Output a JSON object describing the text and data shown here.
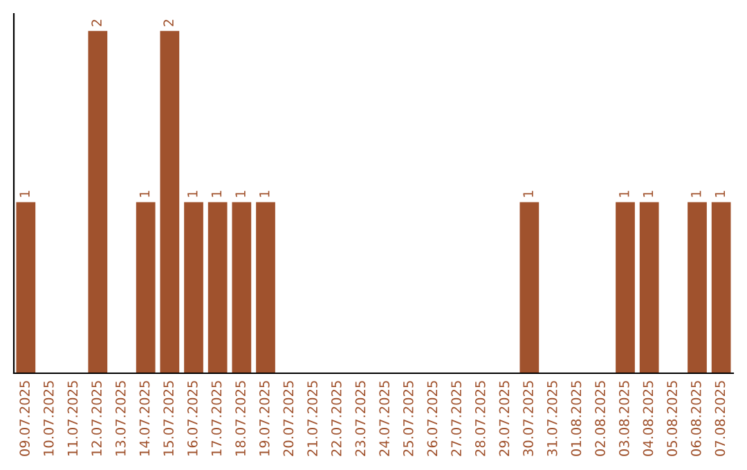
{
  "chart_data": {
    "type": "bar",
    "categories": [
      "09.07.2025",
      "10.07.2025",
      "11.07.2025",
      "12.07.2025",
      "13.07.2025",
      "14.07.2025",
      "15.07.2025",
      "16.07.2025",
      "17.07.2025",
      "18.07.2025",
      "19.07.2025",
      "20.07.2025",
      "21.07.2025",
      "22.07.2025",
      "23.07.2025",
      "24.07.2025",
      "25.07.2025",
      "26.07.2025",
      "27.07.2025",
      "28.07.2025",
      "29.07.2025",
      "30.07.2025",
      "31.07.2025",
      "01.08.2025",
      "02.08.2025",
      "03.08.2025",
      "04.08.2025",
      "05.08.2025",
      "06.08.2025",
      "07.08.2025"
    ],
    "values": [
      1,
      0,
      0,
      2,
      0,
      1,
      2,
      1,
      1,
      1,
      1,
      0,
      0,
      0,
      0,
      0,
      0,
      0,
      0,
      0,
      0,
      1,
      0,
      0,
      0,
      1,
      1,
      0,
      1,
      1
    ],
    "value_labels": [
      "1",
      null,
      null,
      "2",
      null,
      "1",
      "2",
      "1",
      "1",
      "1",
      "1",
      null,
      null,
      null,
      null,
      null,
      null,
      null,
      null,
      null,
      null,
      "1",
      null,
      null,
      null,
      "1",
      "1",
      null,
      "1",
      "1"
    ],
    "color": "#a0522d",
    "tick_labels": "x",
    "grid": false,
    "legend": false
  }
}
